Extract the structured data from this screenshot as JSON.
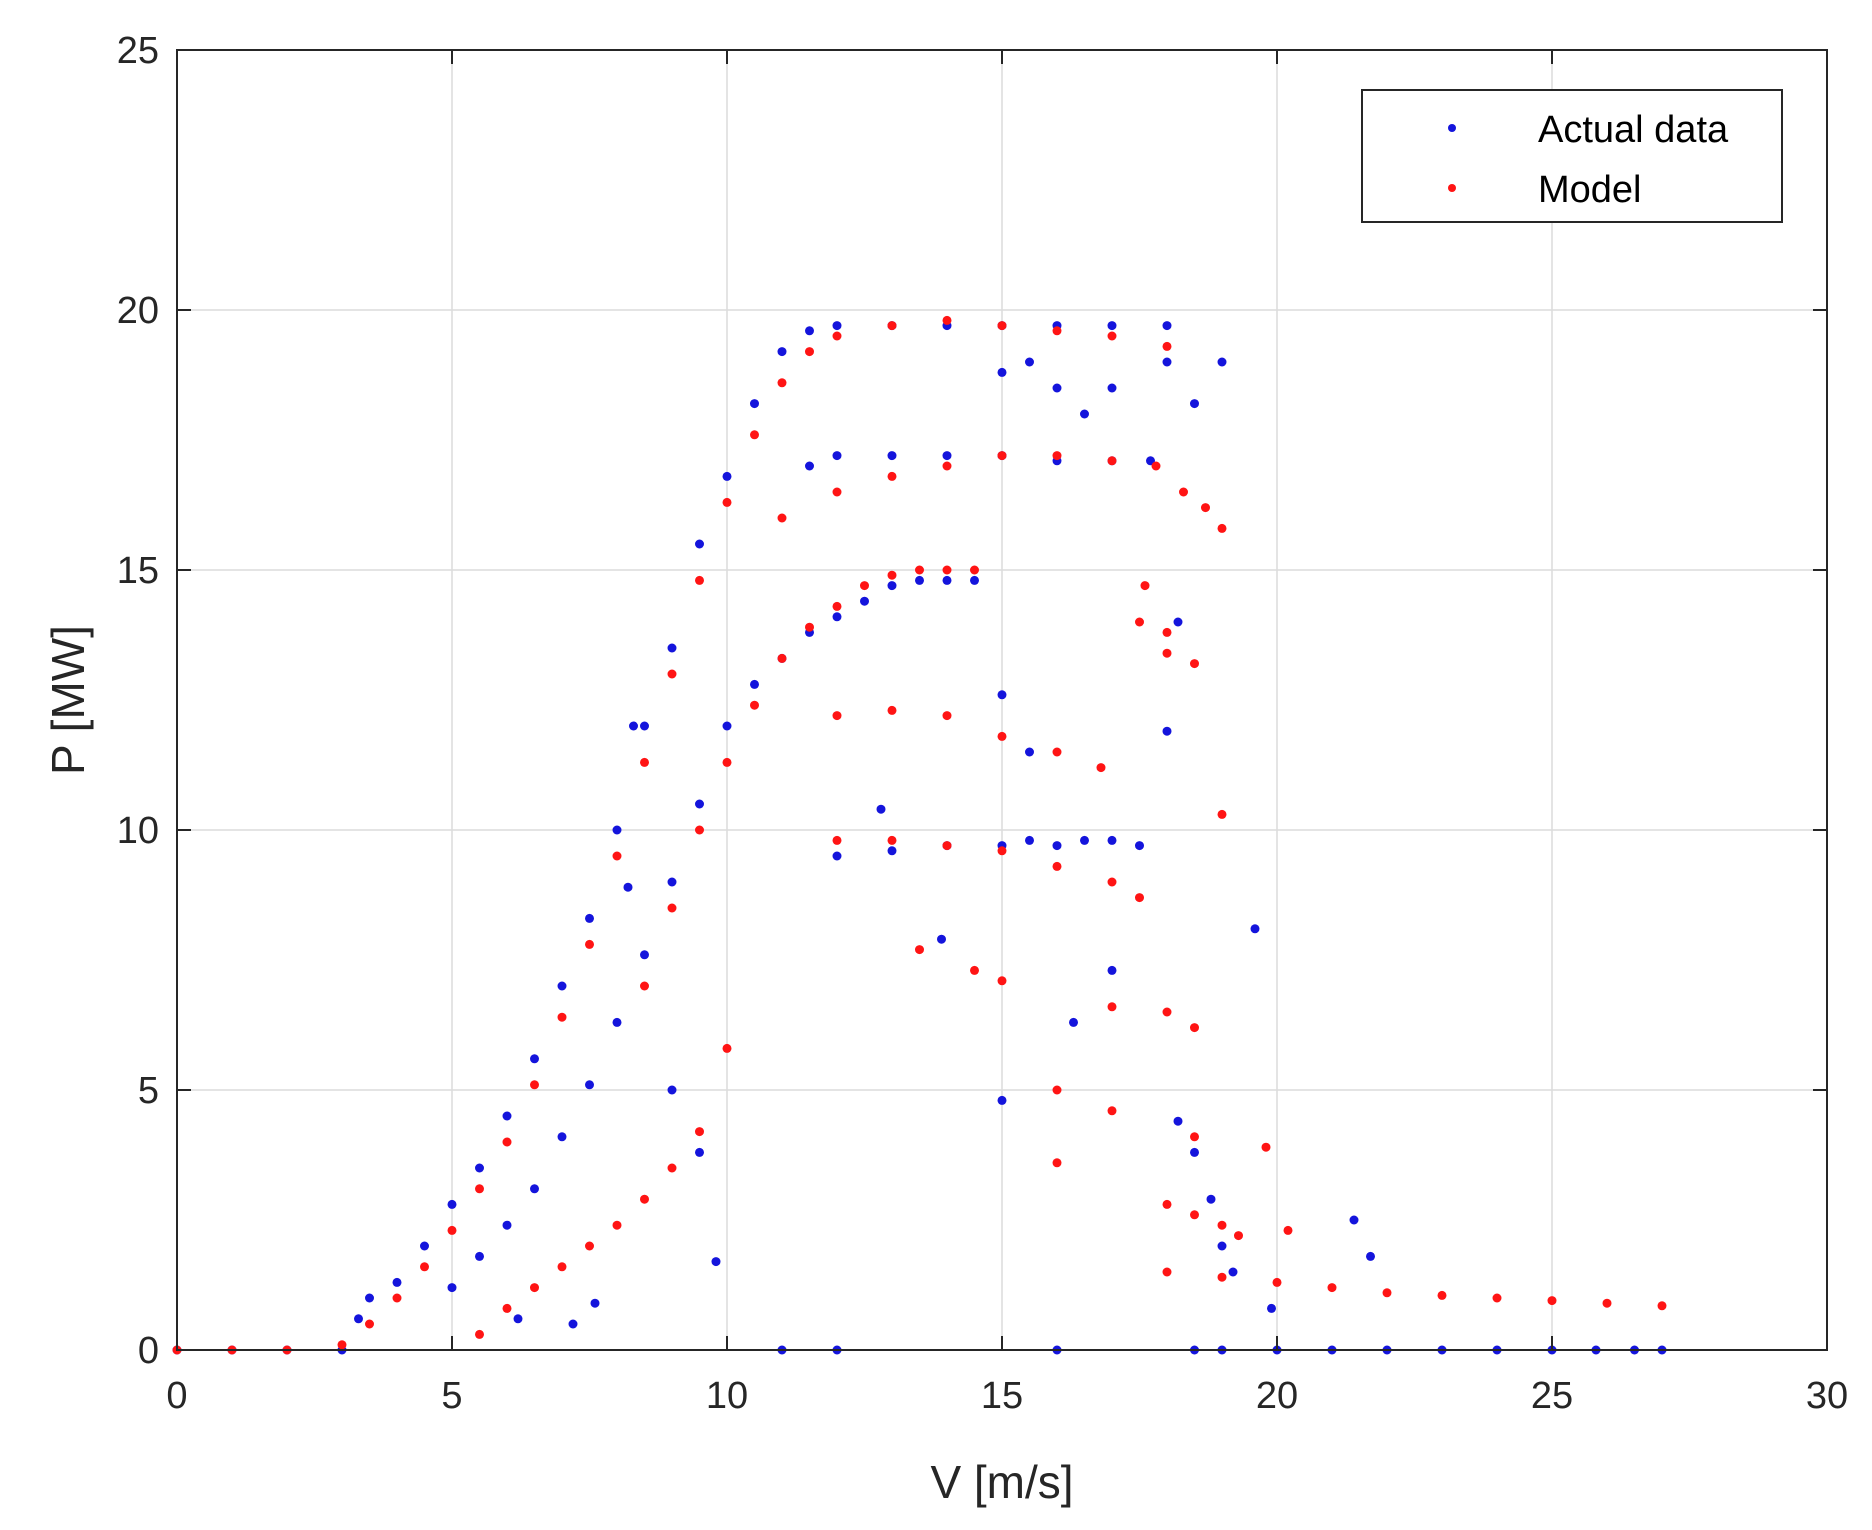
{
  "chart_data": {
    "type": "scatter",
    "title": "",
    "xlabel": "V [m/s]",
    "ylabel": "P [MW]",
    "xlim": [
      0,
      30
    ],
    "ylim": [
      0,
      25
    ],
    "xticks": [
      0,
      5,
      10,
      15,
      20,
      25,
      30
    ],
    "yticks": [
      0,
      5,
      10,
      15,
      20,
      25
    ],
    "xtick_labels": [
      "0",
      "5",
      "10",
      "15",
      "20",
      "25",
      "30"
    ],
    "ytick_labels": [
      "0",
      "5",
      "10",
      "15",
      "20",
      "25"
    ],
    "grid": true,
    "legend_position": "top-right",
    "series": [
      {
        "name": "Actual data",
        "color": "#1414dc",
        "points": [
          [
            0,
            0
          ],
          [
            1,
            0
          ],
          [
            2,
            0
          ],
          [
            3,
            0
          ],
          [
            3.3,
            0.6
          ],
          [
            3.5,
            1.0
          ],
          [
            4,
            1.3
          ],
          [
            4.5,
            2.0
          ],
          [
            5,
            2.8
          ],
          [
            5.5,
            3.5
          ],
          [
            6,
            4.5
          ],
          [
            6.5,
            5.6
          ],
          [
            7,
            7.0
          ],
          [
            7.5,
            8.3
          ],
          [
            8,
            10.0
          ],
          [
            8.5,
            12.0
          ],
          [
            9,
            13.5
          ],
          [
            9.5,
            15.5
          ],
          [
            10,
            16.8
          ],
          [
            10.5,
            18.2
          ],
          [
            11,
            19.2
          ],
          [
            11.5,
            19.6
          ],
          [
            12,
            19.7
          ],
          [
            13,
            19.7
          ],
          [
            14,
            19.7
          ],
          [
            15,
            19.7
          ],
          [
            16,
            19.7
          ],
          [
            17,
            19.7
          ],
          [
            18,
            19.7
          ],
          [
            5,
            1.2
          ],
          [
            5.5,
            1.8
          ],
          [
            6,
            2.4
          ],
          [
            6.5,
            3.1
          ],
          [
            7,
            4.1
          ],
          [
            7.5,
            5.1
          ],
          [
            8,
            6.3
          ],
          [
            8.5,
            7.6
          ],
          [
            9,
            9.0
          ],
          [
            9.5,
            10.5
          ],
          [
            10,
            12.0
          ],
          [
            10.5,
            12.8
          ],
          [
            11,
            13.3
          ],
          [
            11.5,
            13.8
          ],
          [
            12,
            14.1
          ],
          [
            12.5,
            14.4
          ],
          [
            13,
            14.7
          ],
          [
            13.5,
            14.8
          ],
          [
            14,
            14.8
          ],
          [
            14.5,
            14.8
          ],
          [
            11.5,
            17.0
          ],
          [
            12,
            17.2
          ],
          [
            13,
            17.2
          ],
          [
            14,
            17.2
          ],
          [
            15,
            17.2
          ],
          [
            16,
            17.1
          ],
          [
            17,
            17.1
          ],
          [
            17.7,
            17.1
          ],
          [
            12,
            9.5
          ],
          [
            13,
            9.6
          ],
          [
            14,
            9.7
          ],
          [
            15,
            9.7
          ],
          [
            15.5,
            9.8
          ],
          [
            16,
            9.7
          ],
          [
            16.5,
            9.8
          ],
          [
            17,
            9.8
          ],
          [
            17.5,
            9.7
          ],
          [
            15,
            18.8
          ],
          [
            15.5,
            19.0
          ],
          [
            16,
            18.5
          ],
          [
            16.5,
            18.0
          ],
          [
            17,
            18.5
          ],
          [
            18,
            19.0
          ],
          [
            18.5,
            18.2
          ],
          [
            19,
            19.0
          ],
          [
            8.3,
            12.0
          ],
          [
            8.2,
            8.9
          ],
          [
            9,
            5.0
          ],
          [
            9.5,
            3.8
          ],
          [
            9.8,
            1.7
          ],
          [
            7.6,
            0.9
          ],
          [
            7.2,
            0.5
          ],
          [
            6.2,
            0.6
          ],
          [
            12.8,
            10.4
          ],
          [
            13.9,
            7.9
          ],
          [
            15,
            12.6
          ],
          [
            15,
            4.8
          ],
          [
            15.5,
            11.5
          ],
          [
            16.3,
            6.3
          ],
          [
            17,
            7.3
          ],
          [
            18,
            11.9
          ],
          [
            18.2,
            14.0
          ],
          [
            18.2,
            4.4
          ],
          [
            18.5,
            3.8
          ],
          [
            18.8,
            2.9
          ],
          [
            19,
            2.0
          ],
          [
            19.2,
            1.5
          ],
          [
            19.6,
            8.1
          ],
          [
            19.9,
            0.8
          ],
          [
            21.4,
            2.5
          ],
          [
            21.7,
            1.8
          ],
          [
            11,
            0
          ],
          [
            12,
            0
          ],
          [
            16,
            0
          ],
          [
            18.5,
            0
          ],
          [
            19,
            0
          ],
          [
            20,
            0
          ],
          [
            21,
            0
          ],
          [
            22,
            0
          ],
          [
            23,
            0
          ],
          [
            24,
            0
          ],
          [
            25,
            0
          ],
          [
            25.8,
            0
          ],
          [
            26.5,
            0
          ],
          [
            27,
            0
          ]
        ]
      },
      {
        "name": "Model",
        "color": "#ff1414",
        "points": [
          [
            0,
            0
          ],
          [
            1,
            0
          ],
          [
            2,
            0
          ],
          [
            3,
            0.1
          ],
          [
            3.5,
            0.5
          ],
          [
            4,
            1.0
          ],
          [
            4.5,
            1.6
          ],
          [
            5,
            2.3
          ],
          [
            5.5,
            3.1
          ],
          [
            6,
            4.0
          ],
          [
            6.5,
            5.1
          ],
          [
            7,
            6.4
          ],
          [
            7.5,
            7.8
          ],
          [
            8,
            9.5
          ],
          [
            8.5,
            11.3
          ],
          [
            9,
            13.0
          ],
          [
            9.5,
            14.8
          ],
          [
            10,
            16.3
          ],
          [
            10.5,
            17.6
          ],
          [
            11,
            18.6
          ],
          [
            11.5,
            19.2
          ],
          [
            12,
            19.5
          ],
          [
            13,
            19.7
          ],
          [
            14,
            19.8
          ],
          [
            15,
            19.7
          ],
          [
            16,
            19.6
          ],
          [
            17,
            19.5
          ],
          [
            18,
            19.3
          ],
          [
            8.5,
            7.0
          ],
          [
            9,
            8.5
          ],
          [
            9.5,
            10.0
          ],
          [
            10,
            11.3
          ],
          [
            10.5,
            12.4
          ],
          [
            11,
            13.3
          ],
          [
            11.5,
            13.9
          ],
          [
            12,
            14.3
          ],
          [
            12.5,
            14.7
          ],
          [
            13,
            14.9
          ],
          [
            13.5,
            15.0
          ],
          [
            14,
            15.0
          ],
          [
            14.5,
            15.0
          ],
          [
            11,
            16.0
          ],
          [
            12,
            16.5
          ],
          [
            13,
            16.8
          ],
          [
            14,
            17.0
          ],
          [
            15,
            17.2
          ],
          [
            16,
            17.2
          ],
          [
            17,
            17.1
          ],
          [
            17.8,
            17.0
          ],
          [
            18.3,
            16.5
          ],
          [
            18.7,
            16.2
          ],
          [
            19,
            15.8
          ],
          [
            12,
            9.8
          ],
          [
            13,
            9.8
          ],
          [
            14,
            9.7
          ],
          [
            15,
            9.6
          ],
          [
            16,
            9.3
          ],
          [
            17,
            9.0
          ],
          [
            17.5,
            8.7
          ],
          [
            12,
            12.2
          ],
          [
            13,
            12.3
          ],
          [
            14,
            12.2
          ],
          [
            15,
            11.8
          ],
          [
            16,
            11.5
          ],
          [
            16.8,
            11.2
          ],
          [
            18,
            13.4
          ],
          [
            18.5,
            13.2
          ],
          [
            19,
            10.3
          ],
          [
            5.5,
            0.3
          ],
          [
            6,
            0.8
          ],
          [
            6.5,
            1.2
          ],
          [
            7,
            1.6
          ],
          [
            7.5,
            2.0
          ],
          [
            8,
            2.4
          ],
          [
            8.5,
            2.9
          ],
          [
            9,
            3.5
          ],
          [
            9.5,
            4.2
          ],
          [
            10,
            5.8
          ],
          [
            18,
            2.8
          ],
          [
            18.5,
            2.6
          ],
          [
            19,
            2.4
          ],
          [
            19.3,
            2.2
          ],
          [
            18,
            1.5
          ],
          [
            19,
            1.4
          ],
          [
            20,
            1.3
          ],
          [
            21,
            1.2
          ],
          [
            22,
            1.1
          ],
          [
            23,
            1.05
          ],
          [
            24,
            1.0
          ],
          [
            25,
            0.95
          ],
          [
            26,
            0.9
          ],
          [
            27,
            0.85
          ],
          [
            17,
            6.6
          ],
          [
            18,
            6.5
          ],
          [
            18.5,
            6.2
          ],
          [
            16,
            5.0
          ],
          [
            16,
            3.6
          ],
          [
            17,
            4.6
          ],
          [
            14.5,
            7.3
          ],
          [
            13.5,
            7.7
          ],
          [
            15,
            7.1
          ],
          [
            17.5,
            14.0
          ],
          [
            18,
            13.8
          ],
          [
            17.6,
            14.7
          ],
          [
            19.8,
            3.9
          ],
          [
            20.2,
            2.3
          ],
          [
            18.5,
            4.1
          ]
        ]
      }
    ]
  }
}
